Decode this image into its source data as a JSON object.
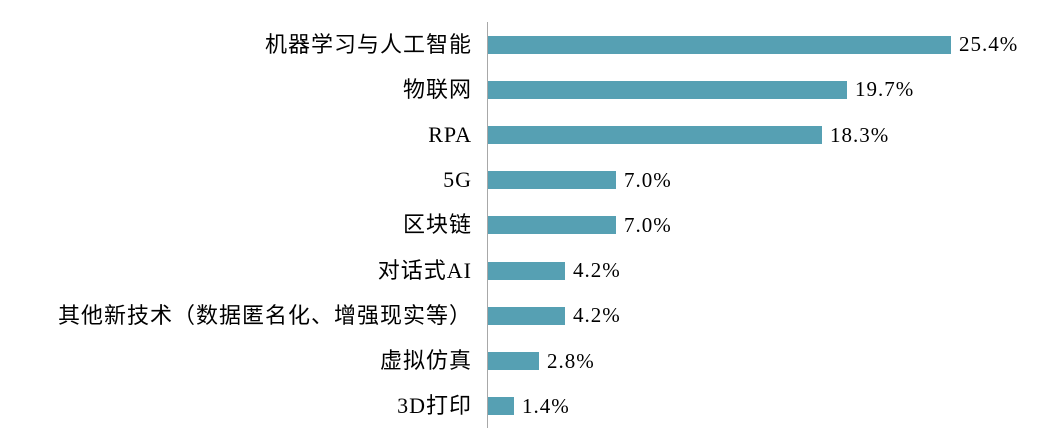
{
  "chart_data": {
    "type": "bar",
    "orientation": "horizontal",
    "title": "",
    "xlabel": "",
    "ylabel": "",
    "categories": [
      "机器学习与人工智能",
      "物联网",
      "RPA",
      "5G",
      "区块链",
      "对话式AI",
      "其他新技术（数据匿名化、增强现实等）",
      "虚拟仿真",
      "3D打印"
    ],
    "values": [
      25.4,
      19.7,
      18.3,
      7.0,
      7.0,
      4.2,
      4.2,
      2.8,
      1.4
    ],
    "value_labels": [
      "25.4%",
      "19.7%",
      "18.3%",
      "7.0%",
      "7.0%",
      "4.2%",
      "4.2%",
      "2.8%",
      "1.4%"
    ],
    "xlim": [
      0,
      25.4
    ],
    "grid": false,
    "legend": false,
    "data_labels_position": "outside-end",
    "bar_color": "#56A0B3",
    "axis_line_color": "#A8A8A8",
    "text_color": "#000000"
  }
}
